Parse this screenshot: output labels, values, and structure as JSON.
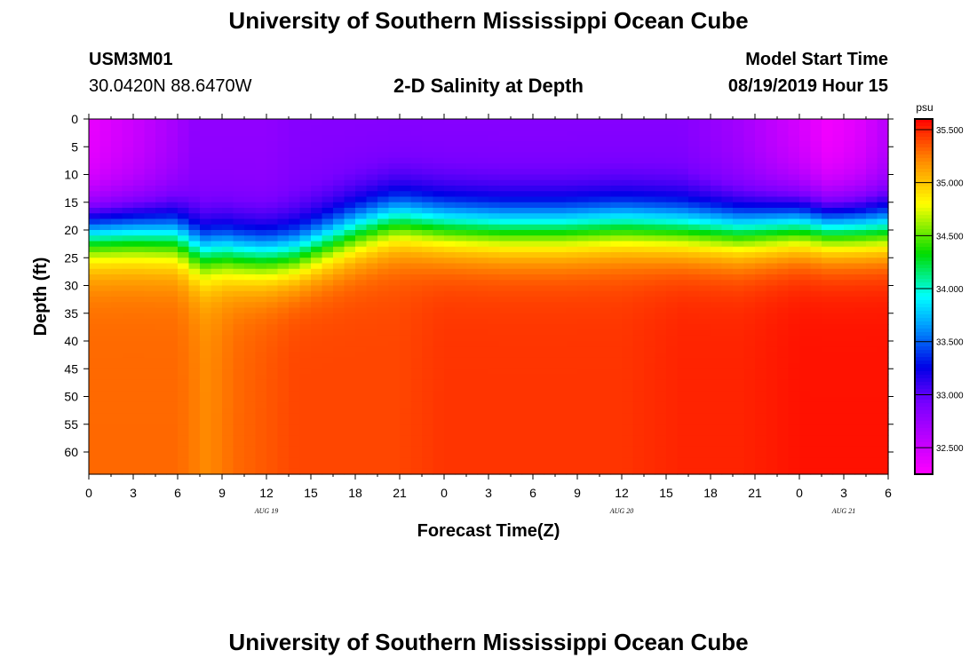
{
  "header": {
    "title": "University of Southern Mississippi Ocean Cube",
    "station_id": "USM3M01",
    "coordinates": "30.0420N 88.6470W",
    "plot_title": "2-D Salinity at Depth",
    "start_label": "Model Start Time",
    "start_time": "08/19/2019 Hour 15"
  },
  "footer": {
    "title": "University of Southern Mississippi Ocean Cube"
  },
  "chart_data": {
    "type": "heatmap",
    "title": "2-D Salinity at Depth",
    "xlabel": "Forecast Time(Z)",
    "ylabel": "Depth (ft)",
    "x_tick_labels": [
      "0",
      "3",
      "6",
      "9",
      "12",
      "15",
      "18",
      "21",
      "0",
      "3",
      "6",
      "9",
      "12",
      "15",
      "18",
      "21",
      "0",
      "3",
      "6"
    ],
    "x_range_hours": [
      0,
      54
    ],
    "date_labels": [
      {
        "text": "AUG 19",
        "hour": 12
      },
      {
        "text": "AUG 20",
        "hour": 36
      },
      {
        "text": "AUG 21",
        "hour": 51
      }
    ],
    "y_tick_labels": [
      "0",
      "5",
      "10",
      "15",
      "20",
      "25",
      "30",
      "35",
      "40",
      "45",
      "50",
      "55",
      "60"
    ],
    "y_range_ft": [
      0,
      64
    ],
    "colorbar": {
      "unit": "psu",
      "range": [
        32.25,
        35.6
      ],
      "tick_labels": [
        "35.500",
        "35.000",
        "34.500",
        "34.000",
        "33.500",
        "33.000",
        "32.500"
      ],
      "tick_values": [
        35.5,
        35.0,
        34.5,
        34.0,
        33.5,
        33.0,
        32.5
      ]
    },
    "profile_hours": [
      0,
      3,
      6,
      7,
      8,
      9,
      10,
      12,
      14,
      16,
      18,
      20,
      21,
      24,
      28,
      32,
      36,
      40,
      44,
      48,
      50,
      52,
      54
    ],
    "halocline_depth_ft": [
      20.5,
      20.5,
      21,
      23,
      24,
      23.5,
      24,
      24.5,
      24,
      22,
      20,
      18.5,
      18,
      19,
      19.5,
      19.5,
      19,
      19.5,
      20,
      19,
      19.5,
      19.5,
      19.5
    ],
    "surface_salinity_psu": [
      32.35,
      32.5,
      32.7,
      32.8,
      32.8,
      32.8,
      32.8,
      32.8,
      32.85,
      32.85,
      32.85,
      32.85,
      32.85,
      32.85,
      32.85,
      32.85,
      32.85,
      32.85,
      32.7,
      32.45,
      32.3,
      32.4,
      32.6
    ],
    "bottom_salinity_psu": [
      35.3,
      35.3,
      35.3,
      35.25,
      35.2,
      35.25,
      35.3,
      35.35,
      35.4,
      35.4,
      35.4,
      35.4,
      35.4,
      35.45,
      35.45,
      35.45,
      35.45,
      35.5,
      35.5,
      35.55,
      35.55,
      35.55,
      35.55
    ]
  }
}
